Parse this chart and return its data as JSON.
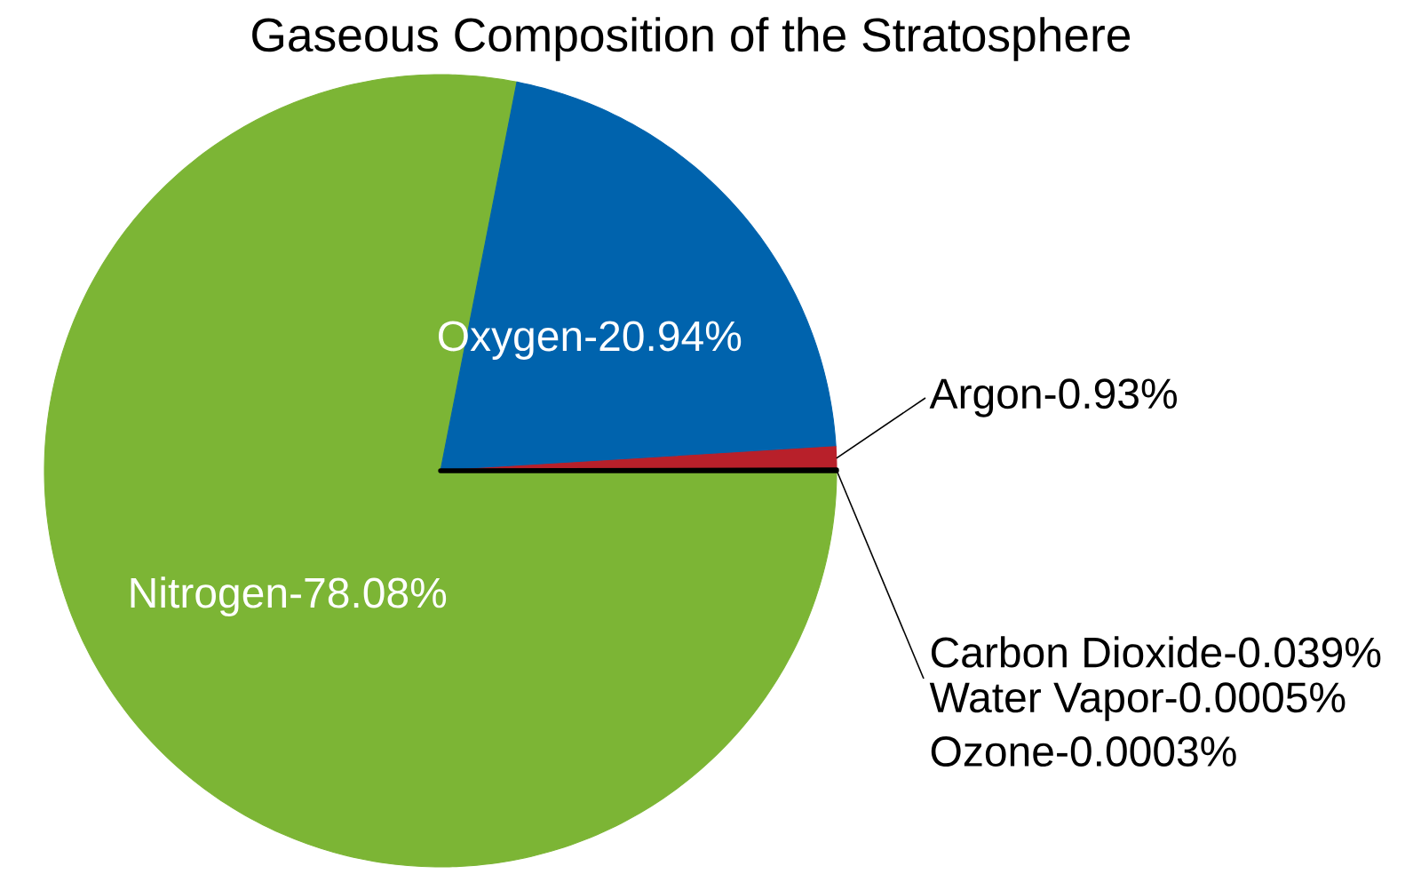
{
  "chart_data": {
    "type": "pie",
    "title": "Gaseous Composition of the Stratosphere",
    "categories": [
      "Nitrogen-78.08%",
      "Oxygen-20.94%",
      "Argon-0.93%",
      "Carbon Dioxide-0.039%",
      "Water Vapor-0.0005%",
      "Ozone-0.0003%"
    ],
    "values": [
      78.08,
      20.94,
      0.93,
      0.039,
      null,
      null
    ],
    "colors": [
      "#7cb535",
      "#0063ad",
      "#b8202a",
      "#000000",
      "#000000",
      "#000000"
    ]
  }
}
